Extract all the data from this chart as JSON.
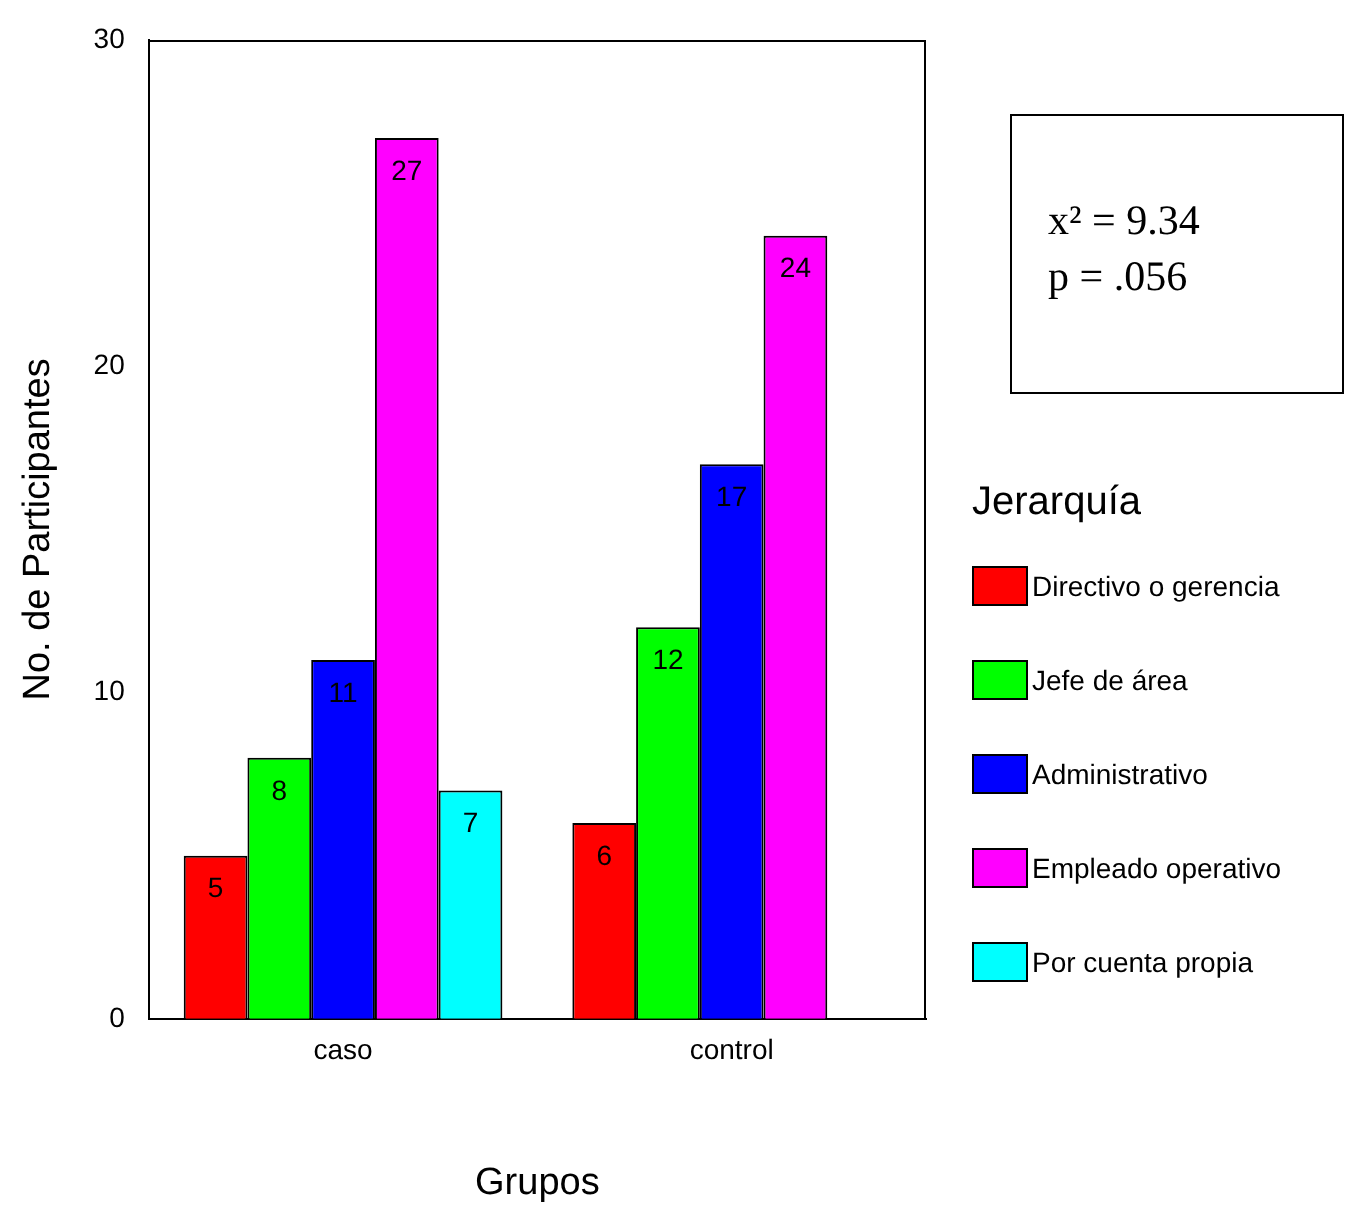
{
  "chart_data": {
    "type": "bar",
    "xlabel": "Grupos",
    "ylabel": "No. de Participantes",
    "legend_title": "Jerarquía",
    "categories": [
      "caso",
      "control"
    ],
    "series": [
      {
        "name": "Directivo o gerencia",
        "color": "#ff0000",
        "values": [
          5,
          6
        ],
        "value_labels": [
          "5",
          "6"
        ]
      },
      {
        "name": "Jefe de área",
        "color": "#00ff00",
        "values": [
          8,
          12
        ],
        "value_labels": [
          "8",
          "12"
        ]
      },
      {
        "name": "Administrativo",
        "color": "#0000ff",
        "values": [
          11,
          17
        ],
        "value_labels": [
          "11",
          "17"
        ]
      },
      {
        "name": "Empleado operativo",
        "color": "#ff00ff",
        "values": [
          27,
          24
        ],
        "value_labels": [
          "27",
          "24"
        ]
      },
      {
        "name": "Por cuenta propia",
        "color": "#00ffff",
        "values": [
          7,
          0
        ],
        "value_labels": [
          "7",
          null
        ]
      }
    ],
    "ylim": [
      0,
      30
    ],
    "yticks": [
      0,
      10,
      20,
      30
    ],
    "grid": false,
    "legend": "right",
    "annotations": [
      "x² = 9.34",
      "p = .056"
    ]
  }
}
